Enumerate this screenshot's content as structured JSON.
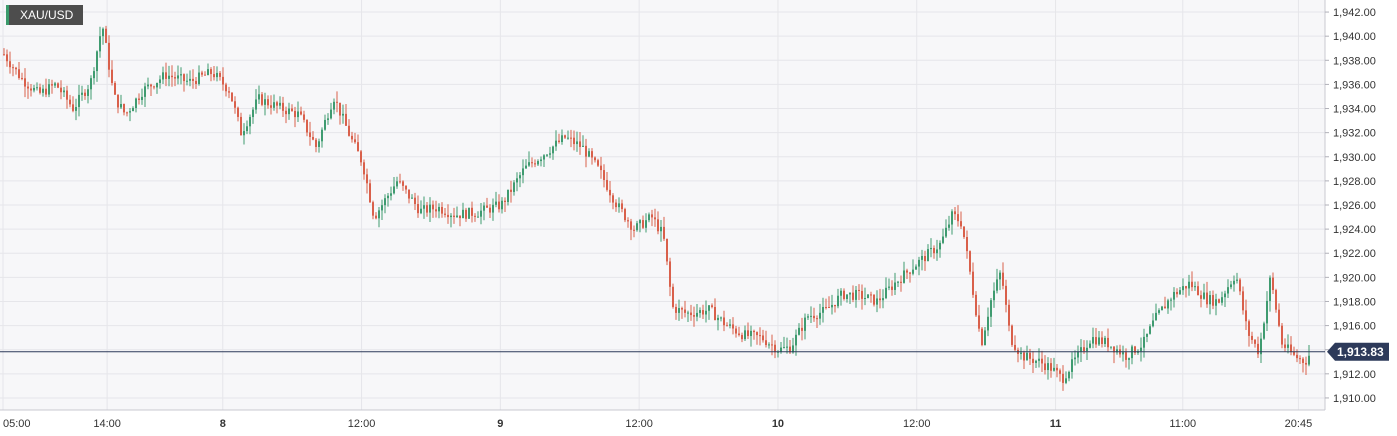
{
  "symbol": "XAU/USD",
  "colors": {
    "up": "#3f9b70",
    "down": "#d9604b",
    "grid": "#e6e6ea",
    "plot_bg": "#f7f7f9",
    "price_line": "#2d3a5a",
    "badge_bg": "#2d3a5a"
  },
  "chart_data": {
    "type": "candlestick",
    "ylim": [
      1909.0,
      1943.0
    ],
    "y_ticks": [
      "1,910.00",
      "1,912.00",
      "1,914.00",
      "1,916.00",
      "1,918.00",
      "1,920.00",
      "1,922.00",
      "1,924.00",
      "1,926.00",
      "1,928.00",
      "1,930.00",
      "1,932.00",
      "1,934.00",
      "1,936.00",
      "1,938.00",
      "1,940.00",
      "1,942.00"
    ],
    "x_ticks": [
      {
        "label": "05:00",
        "bold": false,
        "x": 0
      },
      {
        "label": "14:00",
        "bold": false,
        "x": 9
      },
      {
        "label": "8",
        "bold": true,
        "x": 19
      },
      {
        "label": "12:00",
        "bold": false,
        "x": 31
      },
      {
        "label": "9",
        "bold": true,
        "x": 43
      },
      {
        "label": "12:00",
        "bold": false,
        "x": 55
      },
      {
        "label": "10",
        "bold": true,
        "x": 67
      },
      {
        "label": "12:00",
        "bold": false,
        "x": 79
      },
      {
        "label": "11",
        "bold": true,
        "x": 91
      },
      {
        "label": "11:00",
        "bold": false,
        "x": 102
      },
      {
        "label": "20:45",
        "bold": false,
        "x": 112
      }
    ],
    "x_range": [
      0,
      113
    ],
    "last_price": 1913.83,
    "last_price_label": "1,913.83",
    "anchors": [
      [
        0,
        1938.5
      ],
      [
        1.5,
        1936.5
      ],
      [
        3,
        1935.2
      ],
      [
        4.5,
        1936.0
      ],
      [
        6,
        1934.0
      ],
      [
        7.5,
        1936.2
      ],
      [
        8.5,
        1941.0
      ],
      [
        9.5,
        1935.0
      ],
      [
        10.5,
        1933.5
      ],
      [
        12,
        1935.5
      ],
      [
        14,
        1936.8
      ],
      [
        16,
        1936.2
      ],
      [
        18,
        1937.0
      ],
      [
        19.5,
        1935.5
      ],
      [
        20.5,
        1932.0
      ],
      [
        22,
        1934.8
      ],
      [
        24,
        1934.0
      ],
      [
        25.5,
        1933.5
      ],
      [
        27,
        1930.8
      ],
      [
        28.5,
        1935.0
      ],
      [
        30,
        1931.5
      ],
      [
        31,
        1929.5
      ],
      [
        32,
        1925.0
      ],
      [
        33,
        1926.5
      ],
      [
        34,
        1928.0
      ],
      [
        36,
        1925.5
      ],
      [
        37.5,
        1925.8
      ],
      [
        39,
        1925.2
      ],
      [
        41,
        1925.4
      ],
      [
        43,
        1926.0
      ],
      [
        45,
        1929.0
      ],
      [
        47,
        1930.5
      ],
      [
        48.5,
        1931.6
      ],
      [
        50,
        1930.8
      ],
      [
        51.5,
        1928.8
      ],
      [
        53,
        1926.0
      ],
      [
        54.5,
        1924.0
      ],
      [
        56,
        1925.0
      ],
      [
        57,
        1923.5
      ],
      [
        57.8,
        1917.5
      ],
      [
        59,
        1917.0
      ],
      [
        61,
        1917.3
      ],
      [
        62.5,
        1916.0
      ],
      [
        64,
        1915.2
      ],
      [
        65.5,
        1915.0
      ],
      [
        67,
        1914.0
      ],
      [
        68,
        1914.2
      ],
      [
        69.5,
        1916.8
      ],
      [
        71,
        1917.2
      ],
      [
        72.5,
        1918.6
      ],
      [
        74,
        1918.5
      ],
      [
        75.5,
        1918.0
      ],
      [
        77,
        1919.5
      ],
      [
        78.5,
        1920.8
      ],
      [
        80,
        1922.0
      ],
      [
        81,
        1922.8
      ],
      [
        82,
        1925.2
      ],
      [
        82.8,
        1924.5
      ],
      [
        83.5,
        1920.5
      ],
      [
        84.5,
        1914.5
      ],
      [
        85.3,
        1918.0
      ],
      [
        86.2,
        1920.5
      ],
      [
        87,
        1915.0
      ],
      [
        88,
        1913.5
      ],
      [
        89.5,
        1913.0
      ],
      [
        90.5,
        1912.5
      ],
      [
        91.5,
        1911.6
      ],
      [
        92.5,
        1913.0
      ],
      [
        94,
        1915.0
      ],
      [
        95.5,
        1914.5
      ],
      [
        97,
        1913.5
      ],
      [
        98.5,
        1914.5
      ],
      [
        99.5,
        1916.5
      ],
      [
        101,
        1918.5
      ],
      [
        102.5,
        1919.5
      ],
      [
        104,
        1918.2
      ],
      [
        105,
        1918.0
      ],
      [
        106.5,
        1920.3
      ],
      [
        107.5,
        1915.5
      ],
      [
        108.5,
        1913.8
      ],
      [
        109.5,
        1920.0
      ],
      [
        110.5,
        1914.5
      ],
      [
        111.5,
        1913.5
      ],
      [
        112.5,
        1913.0
      ],
      [
        113,
        1913.83
      ]
    ]
  }
}
